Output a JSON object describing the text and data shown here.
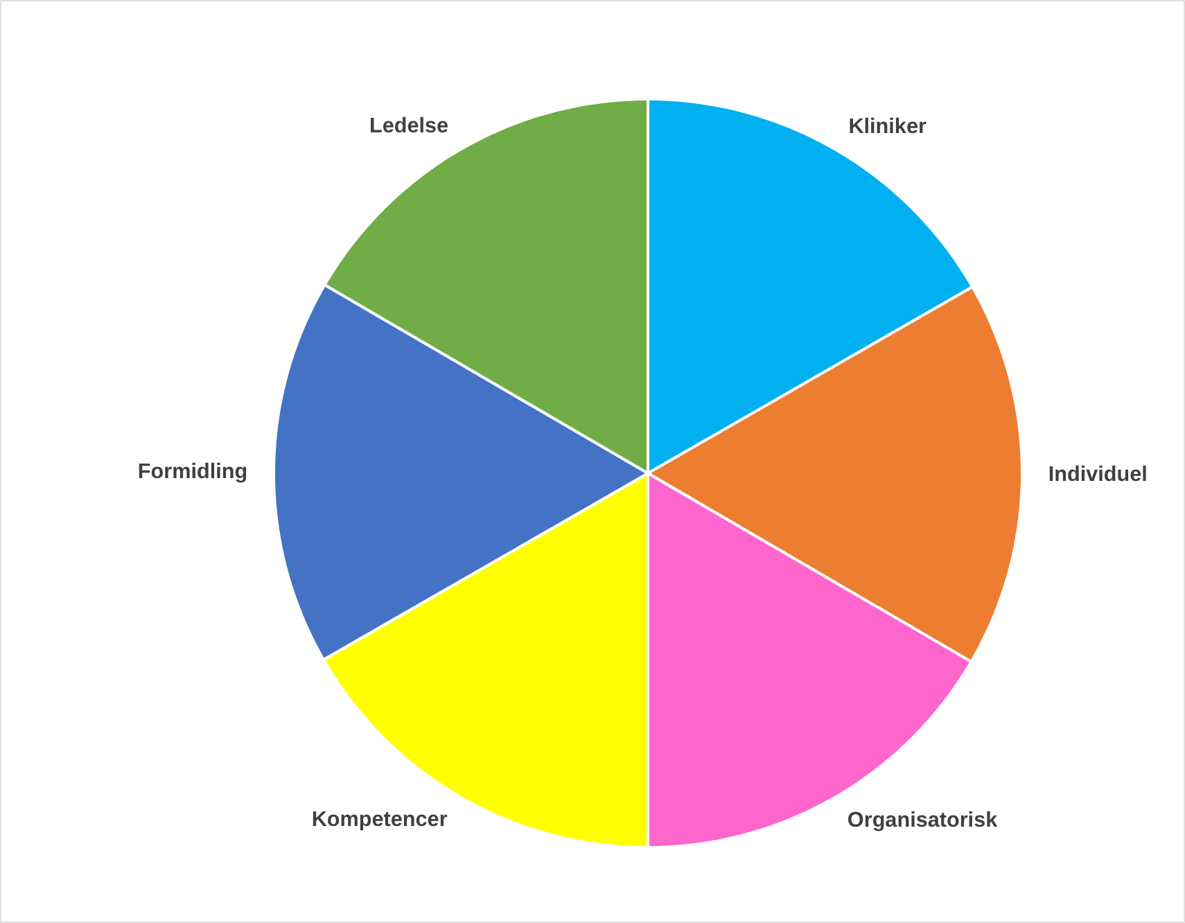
{
  "chart_data": {
    "type": "pie",
    "categories": [
      "Kliniker",
      "Individuel",
      "Organisatorisk",
      "Kompetencer",
      "Formidling",
      "Ledelse"
    ],
    "values": [
      16.7,
      16.7,
      16.6,
      16.7,
      16.7,
      16.6
    ],
    "colors": [
      "#00b0f0",
      "#ed7d31",
      "#ff66cc",
      "#ffff00",
      "#4472c4",
      "#70ad47"
    ],
    "legend": false
  }
}
